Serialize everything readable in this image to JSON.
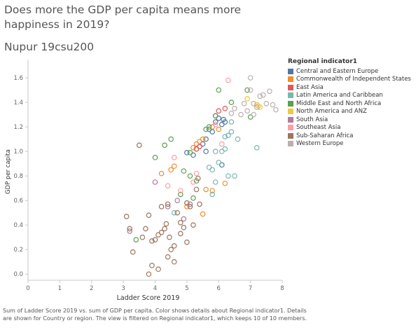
{
  "title": "Does more the GDP per capita means more happiness in 2019?",
  "subtitle": "Nupur 19csu200",
  "caption": "Sum of Ladder Score 2019 vs. sum of GDP per capita. Color shows details about Regional indicator1. Details are shown for Country or region. The view is filtered on Regional indicator1, which keeps 10 of 10 members.",
  "legend": {
    "title": "Regional indicator1",
    "items": [
      {
        "label": "Central and Eastern Europe",
        "color": "#4e79a7"
      },
      {
        "label": "Commonwealth of Independent States",
        "color": "#f28e2b"
      },
      {
        "label": "East Asia",
        "color": "#e15759"
      },
      {
        "label": "Latin America and Caribbean",
        "color": "#76b7b2"
      },
      {
        "label": "Middle East and North Africa",
        "color": "#59a14f"
      },
      {
        "label": "North America and ANZ",
        "color": "#edc948"
      },
      {
        "label": "South Asia",
        "color": "#b07aa1"
      },
      {
        "label": "Southeast Asia",
        "color": "#ff9da7"
      },
      {
        "label": "Sub-Saharan Africa",
        "color": "#9c755f"
      },
      {
        "label": "Western Europe",
        "color": "#bab0ac"
      }
    ]
  },
  "chart_data": {
    "type": "scatter",
    "xlabel": "Ladder Score 2019",
    "ylabel": "GDP per capita",
    "xlim": [
      0,
      8
    ],
    "ylim": [
      -0.05,
      1.72
    ],
    "xticks": [
      "0",
      "1",
      "2",
      "3",
      "4",
      "5",
      "6",
      "7",
      "8"
    ],
    "yticks": [
      "0.0",
      "0.2",
      "0.4",
      "0.6",
      "0.8",
      "1.0",
      "1.2",
      "1.4",
      "1.6"
    ],
    "marker": "hollow-circle",
    "grid": false,
    "legend_position": "right",
    "series": [
      {
        "name": "Central and Eastern Europe",
        "points": [
          [
            5.0,
            0.99
          ],
          [
            5.2,
            0.97
          ],
          [
            5.3,
            1.02
          ],
          [
            5.4,
            1.04
          ],
          [
            5.5,
            1.06
          ],
          [
            5.6,
            1.1
          ],
          [
            5.7,
            1.18
          ],
          [
            5.8,
            1.16
          ],
          [
            5.9,
            1.24
          ],
          [
            6.0,
            1.27
          ],
          [
            6.1,
            1.22
          ],
          [
            6.15,
            1.26
          ],
          [
            6.2,
            1.24
          ],
          [
            6.1,
            0.89
          ],
          [
            5.6,
            1.0
          ]
        ]
      },
      {
        "name": "Commonwealth of Independent States",
        "points": [
          [
            4.2,
            0.82
          ],
          [
            4.5,
            0.85
          ],
          [
            4.6,
            0.88
          ],
          [
            5.0,
            0.55
          ],
          [
            5.2,
            1.03
          ],
          [
            5.3,
            1.06
          ],
          [
            5.4,
            1.08
          ],
          [
            5.5,
            1.1
          ],
          [
            5.8,
            1.2
          ],
          [
            6.0,
            1.18
          ],
          [
            6.2,
            0.74
          ],
          [
            5.6,
            0.69
          ],
          [
            5.5,
            0.49
          ],
          [
            5.8,
            0.68
          ]
        ]
      },
      {
        "name": "East Asia",
        "points": [
          [
            5.4,
            1.04
          ],
          [
            5.9,
            1.29
          ],
          [
            6.2,
            1.35
          ],
          [
            6.0,
            1.33
          ],
          [
            5.3,
            1.02
          ]
        ]
      },
      {
        "name": "Latin America and Caribbean",
        "points": [
          [
            4.6,
            0.5
          ],
          [
            5.7,
            0.87
          ],
          [
            5.8,
            0.65
          ],
          [
            5.9,
            0.75
          ],
          [
            6.0,
            0.91
          ],
          [
            6.1,
            1.0
          ],
          [
            6.2,
            1.02
          ],
          [
            6.3,
            0.8
          ],
          [
            6.3,
            1.13
          ],
          [
            6.4,
            1.16
          ],
          [
            6.5,
            0.8
          ],
          [
            6.6,
            1.1
          ],
          [
            7.2,
            1.03
          ],
          [
            5.9,
            1.0
          ],
          [
            6.2,
            1.12
          ],
          [
            6.4,
            1.24
          ],
          [
            5.8,
            0.85
          ]
        ]
      },
      {
        "name": "Middle East and North Africa",
        "points": [
          [
            3.4,
            0.28
          ],
          [
            4.0,
            0.95
          ],
          [
            4.3,
            1.05
          ],
          [
            4.5,
            1.1
          ],
          [
            4.8,
            0.65
          ],
          [
            4.9,
            0.84
          ],
          [
            5.1,
            0.8
          ],
          [
            5.2,
            0.62
          ],
          [
            5.3,
            0.76
          ],
          [
            5.6,
            1.18
          ],
          [
            5.7,
            1.2
          ],
          [
            5.9,
            1.29
          ],
          [
            6.0,
            1.5
          ],
          [
            6.4,
            1.4
          ],
          [
            6.9,
            1.5
          ],
          [
            7.0,
            1.28
          ],
          [
            5.1,
            0.99
          ]
        ]
      },
      {
        "name": "North America and ANZ",
        "points": [
          [
            6.9,
            1.43
          ],
          [
            7.2,
            1.38
          ],
          [
            7.25,
            1.37
          ],
          [
            7.3,
            1.36
          ]
        ]
      },
      {
        "name": "South Asia",
        "points": [
          [
            3.2,
            0.35
          ],
          [
            4.0,
            0.75
          ],
          [
            4.4,
            0.55
          ],
          [
            4.7,
            0.6
          ],
          [
            4.9,
            0.45
          ],
          [
            5.1,
            0.57
          ]
        ]
      },
      {
        "name": "Southeast Asia",
        "points": [
          [
            4.4,
            0.72
          ],
          [
            4.6,
            0.95
          ],
          [
            4.8,
            0.68
          ],
          [
            5.0,
            0.58
          ],
          [
            5.2,
            0.75
          ],
          [
            5.3,
            0.82
          ],
          [
            5.9,
            1.22
          ],
          [
            6.1,
            1.06
          ],
          [
            6.3,
            1.58
          ]
        ]
      },
      {
        "name": "Sub-Saharan Africa",
        "points": [
          [
            3.1,
            0.47
          ],
          [
            3.2,
            0.37
          ],
          [
            3.3,
            0.18
          ],
          [
            3.5,
            1.05
          ],
          [
            3.6,
            0.3
          ],
          [
            3.7,
            0.37
          ],
          [
            3.8,
            0.48
          ],
          [
            3.9,
            0.27
          ],
          [
            4.0,
            0.28
          ],
          [
            4.1,
            0.32
          ],
          [
            4.2,
            0.34
          ],
          [
            4.3,
            0.37
          ],
          [
            4.35,
            0.41
          ],
          [
            4.4,
            0.57
          ],
          [
            4.45,
            0.3
          ],
          [
            4.5,
            0.2
          ],
          [
            4.6,
            0.23
          ],
          [
            4.7,
            0.5
          ],
          [
            4.8,
            0.42
          ],
          [
            4.8,
            0.33
          ],
          [
            4.9,
            0.38
          ],
          [
            5.0,
            0.58
          ],
          [
            5.1,
            0.55
          ],
          [
            5.2,
            0.4
          ],
          [
            5.3,
            0.69
          ],
          [
            5.35,
            0.78
          ],
          [
            5.4,
            0.57
          ],
          [
            5.0,
            0.26
          ],
          [
            4.4,
            0.14
          ],
          [
            4.1,
            0.04
          ],
          [
            3.9,
            0.07
          ],
          [
            4.2,
            0.55
          ],
          [
            4.6,
            0.1
          ],
          [
            3.8,
            0.0
          ]
        ]
      },
      {
        "name": "Western Europe",
        "points": [
          [
            6.5,
            1.35
          ],
          [
            6.7,
            1.3
          ],
          [
            6.8,
            1.39
          ],
          [
            6.9,
            1.33
          ],
          [
            7.0,
            1.6
          ],
          [
            7.0,
            1.5
          ],
          [
            7.1,
            1.39
          ],
          [
            7.2,
            1.36
          ],
          [
            7.3,
            1.45
          ],
          [
            7.4,
            1.46
          ],
          [
            7.5,
            1.39
          ],
          [
            7.6,
            1.49
          ],
          [
            7.7,
            1.38
          ],
          [
            7.8,
            1.34
          ],
          [
            6.4,
            1.31
          ],
          [
            7.1,
            1.3
          ]
        ]
      }
    ]
  }
}
